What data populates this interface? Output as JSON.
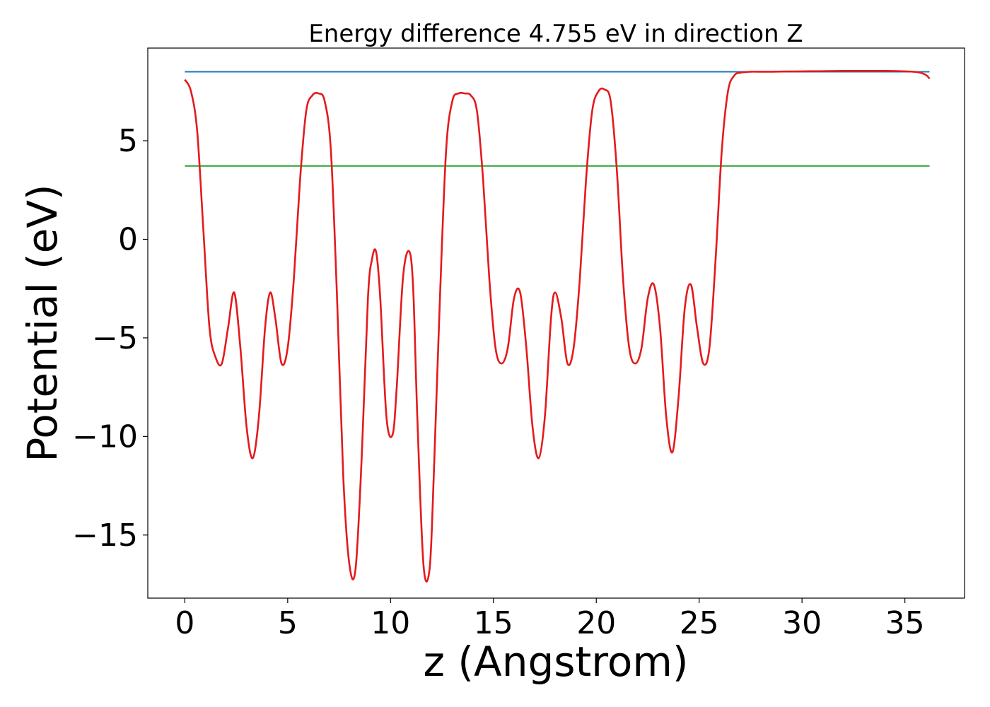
{
  "chart_data": {
    "type": "line",
    "title": "Energy difference 4.755 eV in direction Z",
    "xlabel": "z (Angstrom)",
    "ylabel": "Potential (eV)",
    "xlim": [
      -1.8,
      37.9
    ],
    "ylim": [
      -18.2,
      9.7
    ],
    "xticks": [
      0,
      5,
      10,
      15,
      20,
      25,
      30,
      35
    ],
    "xtick_labels": [
      "0",
      "5",
      "10",
      "15",
      "20",
      "25",
      "30",
      "35"
    ],
    "yticks": [
      5,
      0,
      -5,
      -10,
      -15
    ],
    "ytick_labels": [
      "5",
      "0",
      "−5",
      "−10",
      "−15"
    ],
    "grid": false,
    "legend": "none",
    "series": [
      {
        "color": "#1f77b4",
        "x": [
          0,
          36.2
        ],
        "y": [
          8.5,
          8.5
        ]
      },
      {
        "color": "#2ca02c",
        "x": [
          0,
          36.2
        ],
        "y": [
          3.72,
          3.72
        ]
      },
      {
        "color": "#e41a1c",
        "x": [
          0,
          0.3,
          0.6,
          0.9,
          1.2,
          1.5,
          1.8,
          2.1,
          2.4,
          2.7,
          3.0,
          3.3,
          3.6,
          3.9,
          4.15,
          4.4,
          4.7,
          5.0,
          5.3,
          5.6,
          5.9,
          6.2,
          6.5,
          6.8,
          7.1,
          7.4,
          7.7,
          8.0,
          8.3,
          8.6,
          8.9,
          9.1,
          9.3,
          9.5,
          9.8,
          10.1,
          10.3,
          10.6,
          10.9,
          11.1,
          11.3,
          11.6,
          11.9,
          12.1,
          12.4,
          12.7,
          13.0,
          13.3,
          13.6,
          13.9,
          14.2,
          14.5,
          14.8,
          15.1,
          15.4,
          15.7,
          16.0,
          16.3,
          16.6,
          16.9,
          17.2,
          17.5,
          17.8,
          18.0,
          18.3,
          18.6,
          18.9,
          19.2,
          19.5,
          19.8,
          20.1,
          20.4,
          20.7,
          21.0,
          21.3,
          21.6,
          21.9,
          22.2,
          22.5,
          22.8,
          23.1,
          23.4,
          23.7,
          24.0,
          24.3,
          24.6,
          24.9,
          25.2,
          25.5,
          25.8,
          26.1,
          26.4,
          26.7,
          27.0,
          27.5,
          28.0,
          28.5,
          29.0,
          30.0,
          31.0,
          32.0,
          33.0,
          34.0,
          35.0,
          35.6,
          36.0,
          36.2
        ],
        "y": [
          8.1,
          7.5,
          5.5,
          0.5,
          -4.5,
          -6.0,
          -6.3,
          -4.5,
          -2.7,
          -5.5,
          -9.5,
          -11.1,
          -9.0,
          -4.5,
          -2.7,
          -4.0,
          -6.3,
          -5.5,
          -2.0,
          3.0,
          6.5,
          7.3,
          7.4,
          7.0,
          4.5,
          -3.0,
          -12.0,
          -16.5,
          -16.7,
          -11.0,
          -3.0,
          -1.0,
          -0.65,
          -3.0,
          -9.0,
          -9.9,
          -7.5,
          -2.0,
          -0.6,
          -2.5,
          -9.0,
          -16.5,
          -16.7,
          -12.0,
          -3.0,
          4.5,
          7.0,
          7.4,
          7.4,
          7.3,
          6.5,
          3.0,
          -2.0,
          -5.5,
          -6.3,
          -5.5,
          -3.0,
          -2.7,
          -5.5,
          -9.5,
          -11.1,
          -9.0,
          -4.0,
          -2.7,
          -4.0,
          -6.3,
          -5.5,
          -2.0,
          3.0,
          6.5,
          7.5,
          7.6,
          7.0,
          3.5,
          -2.0,
          -5.5,
          -6.3,
          -5.5,
          -3.0,
          -2.3,
          -4.5,
          -9.0,
          -10.8,
          -8.0,
          -3.5,
          -2.3,
          -4.5,
          -6.3,
          -5.5,
          -1.0,
          4.5,
          7.5,
          8.3,
          8.45,
          8.5,
          8.5,
          8.5,
          8.51,
          8.52,
          8.53,
          8.54,
          8.54,
          8.54,
          8.52,
          8.48,
          8.35,
          8.15
        ]
      }
    ]
  }
}
